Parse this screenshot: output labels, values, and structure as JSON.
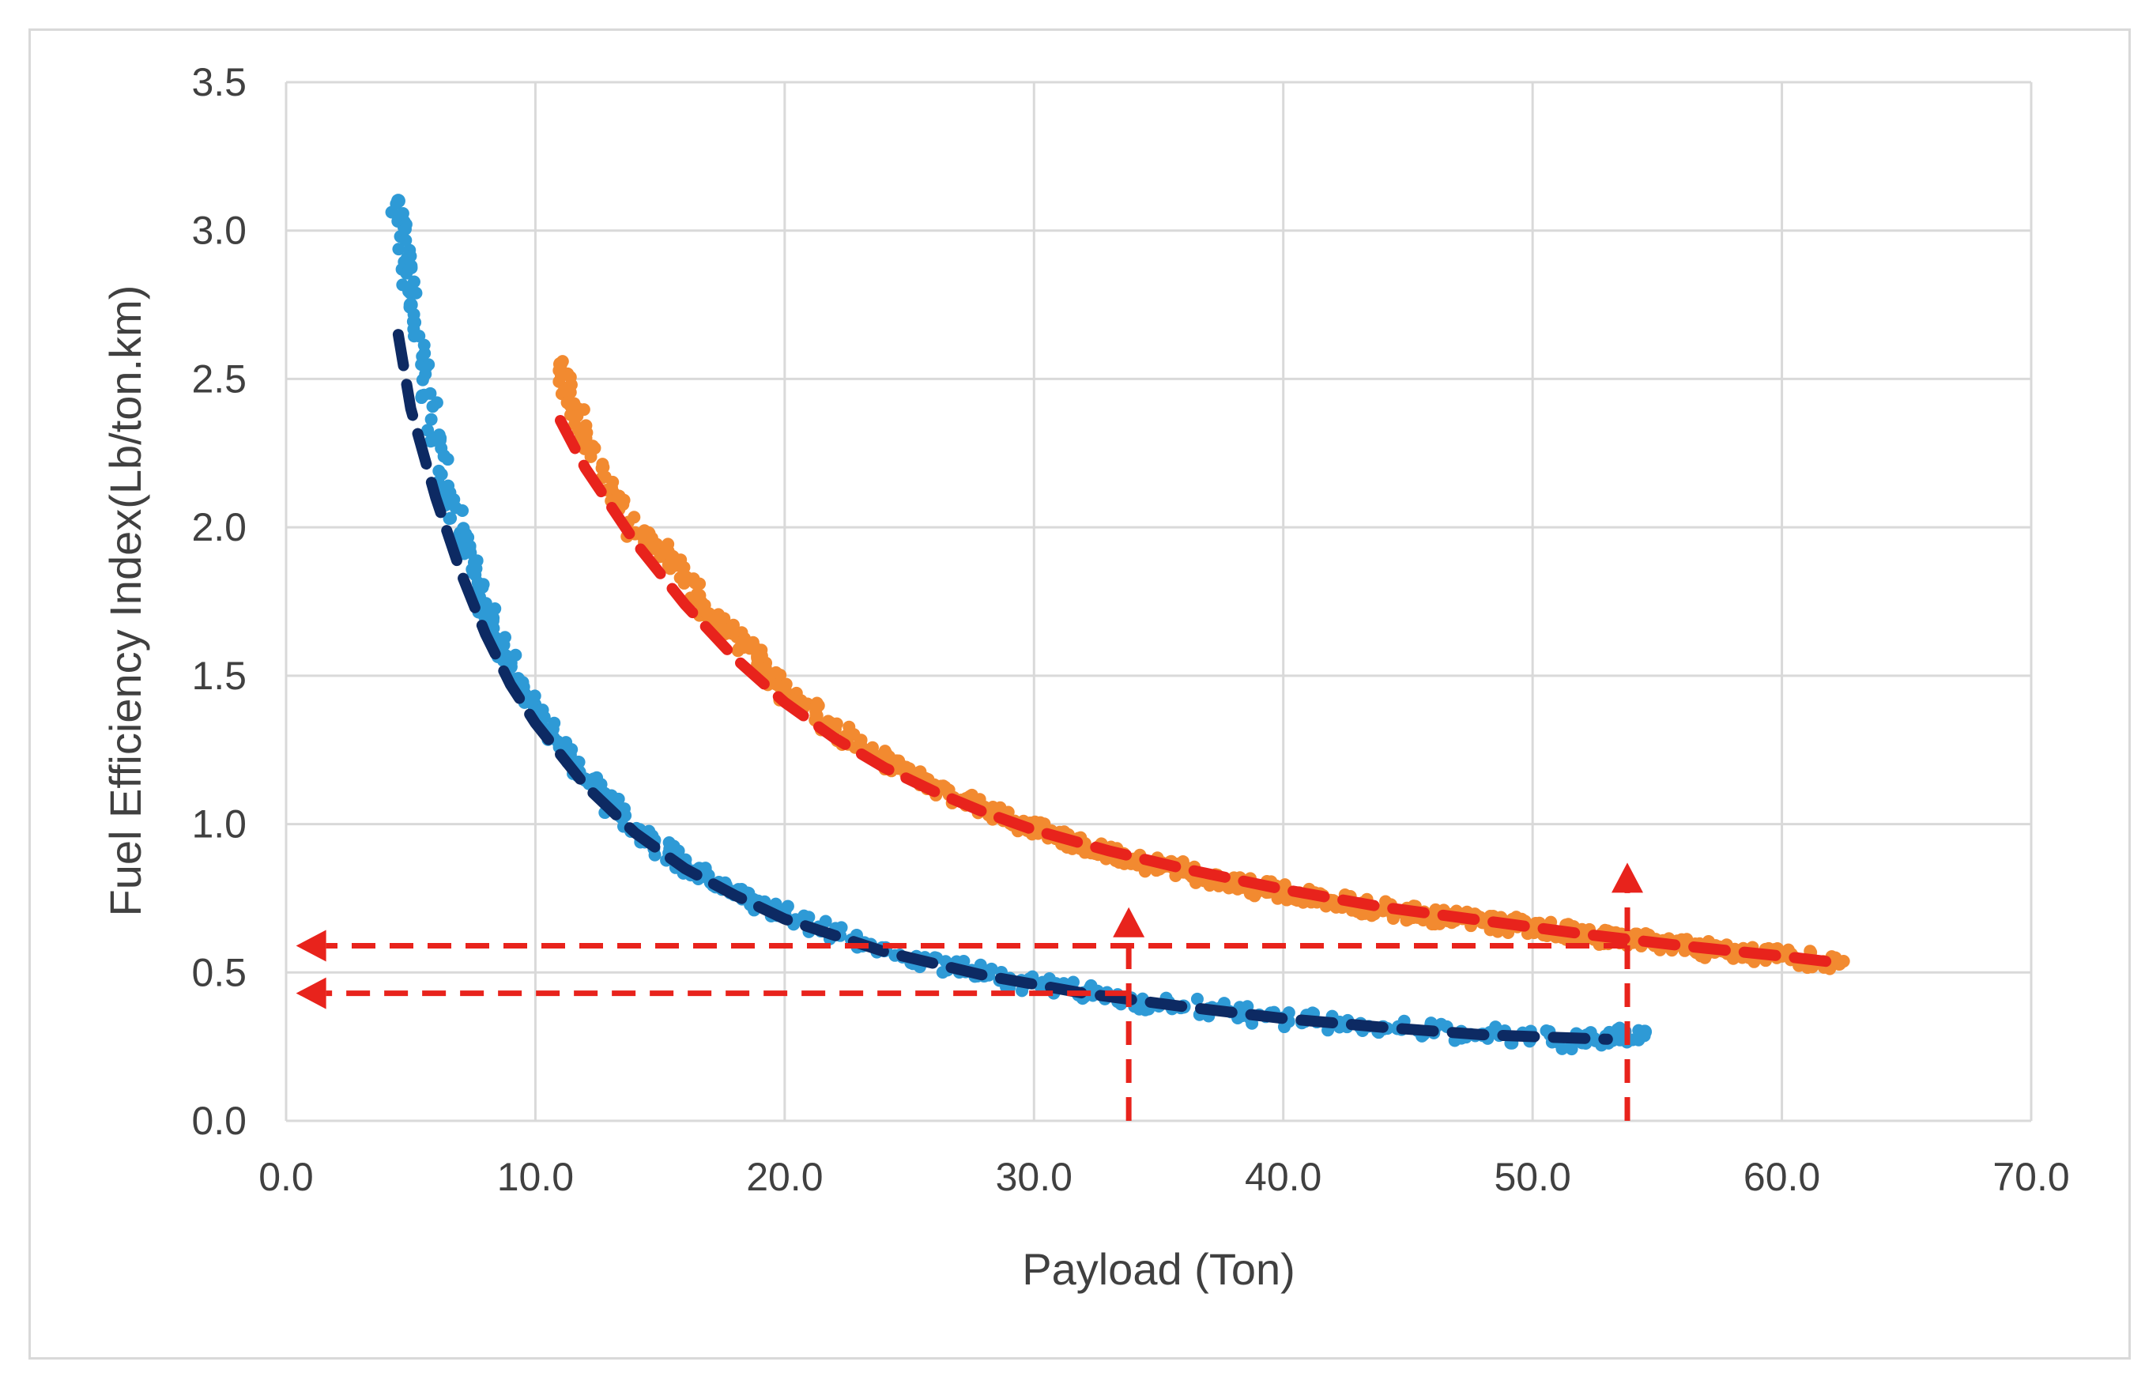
{
  "chart_data": {
    "type": "scatter",
    "xlabel": "Payload (Ton)",
    "ylabel": "Fuel Efficiency Index(Lb/ton.km)",
    "xlim": [
      0,
      70
    ],
    "ylim": [
      0,
      3.5
    ],
    "x_ticks": [
      "0.0",
      "10.0",
      "20.0",
      "30.0",
      "40.0",
      "50.0",
      "60.0",
      "70.0"
    ],
    "y_ticks": [
      "0.0",
      "0.5",
      "1.0",
      "1.5",
      "2.0",
      "2.5",
      "3.0",
      "3.5"
    ],
    "grid": true,
    "series": [
      {
        "kind": "scatter",
        "color": "#2e9ad6",
        "x": [
          4.5,
          5.0,
          6.0,
          7.0,
          8.0,
          9.0,
          10.0,
          12.0,
          14.0,
          16.0,
          18.0,
          20.0,
          24.0,
          28.0,
          32.0,
          36.0,
          40.0,
          44.0,
          48.0,
          52.0,
          54.5
        ],
        "y": [
          3.1,
          2.75,
          2.3,
          1.98,
          1.72,
          1.53,
          1.38,
          1.15,
          0.98,
          0.86,
          0.77,
          0.69,
          0.575,
          0.49,
          0.43,
          0.385,
          0.345,
          0.315,
          0.29,
          0.265,
          0.3
        ]
      },
      {
        "kind": "fit",
        "style": "dashed",
        "color": "#0d2a63",
        "x": [
          4.5,
          5.0,
          6.0,
          7.0,
          8.0,
          9.0,
          10.0,
          12.0,
          14.0,
          16.0,
          18.0,
          20.0,
          24.0,
          28.0,
          32.0,
          36.0,
          40.0,
          44.0,
          48.0,
          53.0
        ],
        "y": [
          2.65,
          2.4,
          2.1,
          1.85,
          1.64,
          1.47,
          1.34,
          1.13,
          0.97,
          0.85,
          0.76,
          0.68,
          0.57,
          0.49,
          0.43,
          0.385,
          0.345,
          0.315,
          0.29,
          0.275
        ]
      },
      {
        "kind": "scatter",
        "color": "#f28a30",
        "x": [
          11.0,
          12.0,
          14.0,
          15.5,
          17.0,
          18.5,
          20.0,
          22.0,
          24.0,
          26.0,
          28.0,
          30.0,
          32.0,
          34.0,
          36.0,
          38.0,
          40.0,
          42.0,
          44.0,
          46.0,
          48.0,
          50.0,
          52.0,
          54.0,
          56.0,
          58.0,
          60.0,
          62.3
        ],
        "y": [
          2.55,
          2.3,
          1.98,
          1.9,
          1.7,
          1.6,
          1.45,
          1.32,
          1.22,
          1.13,
          1.05,
          0.99,
          0.93,
          0.88,
          0.84,
          0.8,
          0.77,
          0.74,
          0.71,
          0.69,
          0.67,
          0.65,
          0.63,
          0.61,
          0.59,
          0.57,
          0.56,
          0.53
        ]
      },
      {
        "kind": "fit",
        "style": "dashed",
        "color": "#e8231c",
        "x": [
          11.0,
          12.0,
          14.0,
          16.0,
          18.0,
          20.0,
          22.0,
          24.0,
          26.0,
          28.0,
          30.0,
          33.0,
          36.0,
          40.0,
          44.0,
          48.0,
          52.0,
          56.0,
          60.0,
          62.0
        ],
        "y": [
          2.36,
          2.2,
          1.95,
          1.74,
          1.56,
          1.41,
          1.29,
          1.19,
          1.11,
          1.04,
          0.98,
          0.91,
          0.85,
          0.78,
          0.72,
          0.675,
          0.63,
          0.59,
          0.555,
          0.535
        ]
      }
    ],
    "reference_lines": [
      {
        "from": [
          33.8,
          0.0
        ],
        "to": [
          33.8,
          0.72
        ],
        "color": "#e8231c"
      },
      {
        "from": [
          53.8,
          0.0
        ],
        "to": [
          53.8,
          0.87
        ],
        "color": "#e8231c"
      },
      {
        "from": [
          53.8,
          0.59
        ],
        "to": [
          0.4,
          0.59
        ],
        "color": "#e8231c"
      },
      {
        "from": [
          33.8,
          0.43
        ],
        "to": [
          0.4,
          0.43
        ],
        "color": "#e8231c"
      }
    ]
  }
}
